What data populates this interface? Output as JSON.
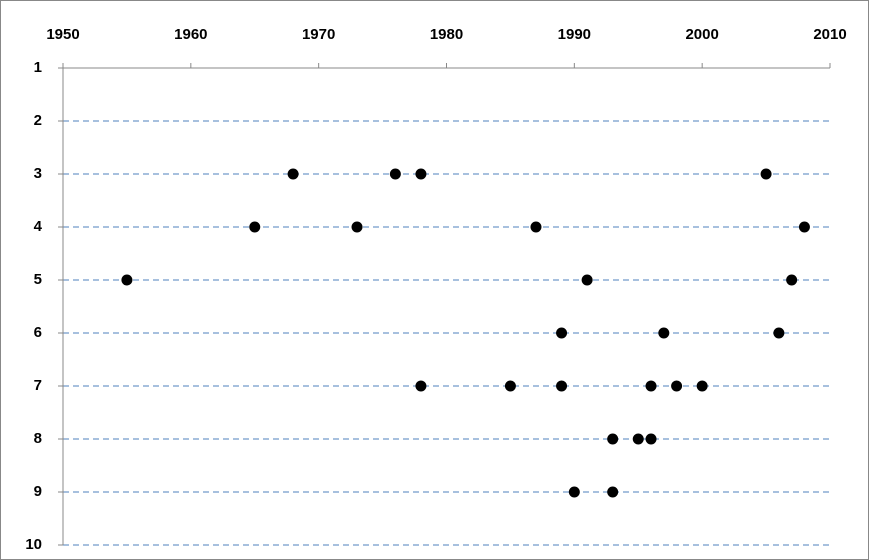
{
  "chart_data": {
    "type": "scatter",
    "x": [
      1968,
      1976,
      1978,
      2005,
      1965,
      1973,
      1987,
      2008,
      1955,
      1991,
      2007,
      1989,
      1997,
      2006,
      1978,
      1985,
      1989,
      1996,
      1998,
      2000,
      1993,
      1995,
      1996,
      1990,
      1993
    ],
    "values": [
      3,
      3,
      3,
      3,
      4,
      4,
      4,
      4,
      5,
      5,
      5,
      6,
      6,
      6,
      7,
      7,
      7,
      7,
      7,
      7,
      8,
      8,
      8,
      9,
      9
    ],
    "color": "#000000",
    "xlim": [
      1950,
      2010
    ],
    "xticks": [
      1950,
      1960,
      1970,
      1980,
      1990,
      2000,
      2010
    ],
    "ylim": [
      10,
      1
    ],
    "yticks": [
      1,
      2,
      3,
      4,
      5,
      6,
      7,
      8,
      9,
      10
    ],
    "x_axis_position": "top",
    "grid": "y",
    "grid_color": "#4f81bd"
  }
}
